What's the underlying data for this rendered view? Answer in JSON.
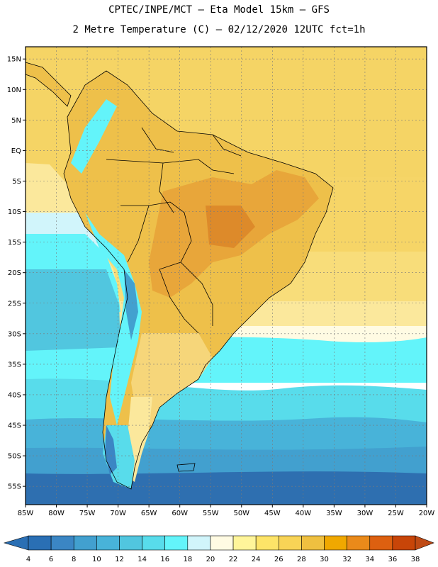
{
  "header": {
    "line1": "CPTEC/INPE/MCT –  Eta Model 15km – GFS",
    "line2": "2 Metre Temperature (C) – 02/12/2020 12UTC fct=1h"
  },
  "axes": {
    "lat_labels": [
      "15N",
      "10N",
      "5N",
      "EQ",
      "5S",
      "10S",
      "15S",
      "20S",
      "25S",
      "30S",
      "35S",
      "40S",
      "45S",
      "50S",
      "55S"
    ],
    "lat_values": [
      15,
      10,
      5,
      0,
      -5,
      -10,
      -15,
      -20,
      -25,
      -30,
      -35,
      -40,
      -45,
      -50,
      -55
    ],
    "lon_labels": [
      "85W",
      "80W",
      "75W",
      "70W",
      "65W",
      "60W",
      "55W",
      "50W",
      "45W",
      "40W",
      "35W",
      "30W",
      "25W",
      "20W"
    ],
    "lon_values": [
      -85,
      -80,
      -75,
      -70,
      -65,
      -60,
      -55,
      -50,
      -45,
      -40,
      -35,
      -30,
      -25,
      -20
    ],
    "lat_range": [
      -58,
      17
    ],
    "lon_range": [
      -85,
      -20
    ]
  },
  "legend": {
    "labels": [
      "4",
      "6",
      "8",
      "10",
      "12",
      "14",
      "16",
      "18",
      "20",
      "22",
      "24",
      "26",
      "28",
      "30",
      "32",
      "34",
      "36",
      "38"
    ],
    "colors": [
      "#2a6fb4",
      "#3b86c4",
      "#42a0cf",
      "#48b3d9",
      "#51c6df",
      "#58dceb",
      "#63f4fa",
      "#d1f5fb",
      "#fffbe3",
      "#fff59a",
      "#fde468",
      "#f8d456",
      "#efc040",
      "#f0a800",
      "#ea8a1a",
      "#dd6010",
      "#c84508",
      "#bf4a14"
    ]
  },
  "colors": {
    "ocean_warm": "#f5d465",
    "ocean_mid": "#fbe69a",
    "land": "#eec04a",
    "land_hot": "#e8a63a",
    "land_cool": "#f6d67a",
    "cold1": "#63f4fa",
    "cold2": "#51c6df",
    "cold3": "#42a0cf",
    "cold4": "#2e6fb0",
    "border": "#000000"
  }
}
